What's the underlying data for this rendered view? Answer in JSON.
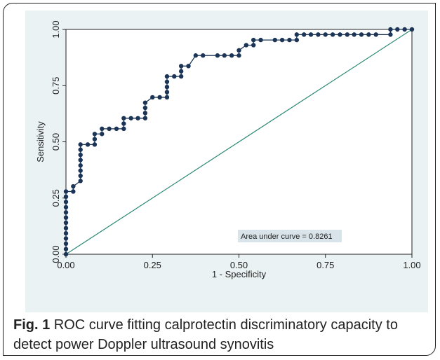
{
  "chart_data": {
    "type": "line",
    "xlabel": "1 - Specificity",
    "ylabel": "Sensitivity",
    "xlim": [
      0,
      1
    ],
    "ylim": [
      0,
      1
    ],
    "x_ticks": [
      "0.00",
      "0.25",
      "0.50",
      "0.75",
      "1.00"
    ],
    "y_ticks": [
      "0.00",
      "0.25",
      "0.50",
      "0.75",
      "1.00"
    ],
    "annotation": "Area under curve = 0.8261",
    "grid": false,
    "series": [
      {
        "points": [
          [
            0.0,
            0.0
          ],
          [
            0.0,
            0.023
          ],
          [
            0.0,
            0.047
          ],
          [
            0.0,
            0.07
          ],
          [
            0.0,
            0.093
          ],
          [
            0.0,
            0.116
          ],
          [
            0.0,
            0.14
          ],
          [
            0.0,
            0.163
          ],
          [
            0.0,
            0.186
          ],
          [
            0.0,
            0.209
          ],
          [
            0.0,
            0.233
          ],
          [
            0.0,
            0.256
          ],
          [
            0.0,
            0.279
          ],
          [
            0.021,
            0.279
          ],
          [
            0.021,
            0.302
          ],
          [
            0.042,
            0.326
          ],
          [
            0.042,
            0.349
          ],
          [
            0.042,
            0.372
          ],
          [
            0.042,
            0.395
          ],
          [
            0.042,
            0.419
          ],
          [
            0.042,
            0.442
          ],
          [
            0.042,
            0.465
          ],
          [
            0.042,
            0.488
          ],
          [
            0.063,
            0.488
          ],
          [
            0.083,
            0.488
          ],
          [
            0.083,
            0.512
          ],
          [
            0.083,
            0.535
          ],
          [
            0.104,
            0.535
          ],
          [
            0.104,
            0.558
          ],
          [
            0.125,
            0.558
          ],
          [
            0.146,
            0.558
          ],
          [
            0.167,
            0.558
          ],
          [
            0.167,
            0.581
          ],
          [
            0.167,
            0.605
          ],
          [
            0.188,
            0.605
          ],
          [
            0.208,
            0.605
          ],
          [
            0.229,
            0.605
          ],
          [
            0.229,
            0.628
          ],
          [
            0.229,
            0.651
          ],
          [
            0.229,
            0.674
          ],
          [
            0.25,
            0.698
          ],
          [
            0.271,
            0.698
          ],
          [
            0.292,
            0.698
          ],
          [
            0.292,
            0.721
          ],
          [
            0.292,
            0.744
          ],
          [
            0.292,
            0.767
          ],
          [
            0.292,
            0.791
          ],
          [
            0.313,
            0.791
          ],
          [
            0.333,
            0.791
          ],
          [
            0.333,
            0.814
          ],
          [
            0.333,
            0.837
          ],
          [
            0.354,
            0.837
          ],
          [
            0.375,
            0.884
          ],
          [
            0.396,
            0.884
          ],
          [
            0.438,
            0.884
          ],
          [
            0.458,
            0.884
          ],
          [
            0.479,
            0.884
          ],
          [
            0.5,
            0.884
          ],
          [
            0.5,
            0.907
          ],
          [
            0.521,
            0.93
          ],
          [
            0.542,
            0.93
          ],
          [
            0.542,
            0.953
          ],
          [
            0.563,
            0.953
          ],
          [
            0.604,
            0.953
          ],
          [
            0.625,
            0.953
          ],
          [
            0.646,
            0.953
          ],
          [
            0.667,
            0.953
          ],
          [
            0.667,
            0.977
          ],
          [
            0.688,
            0.977
          ],
          [
            0.708,
            0.977
          ],
          [
            0.729,
            0.977
          ],
          [
            0.75,
            0.977
          ],
          [
            0.771,
            0.977
          ],
          [
            0.792,
            0.977
          ],
          [
            0.813,
            0.977
          ],
          [
            0.833,
            0.977
          ],
          [
            0.854,
            0.977
          ],
          [
            0.875,
            0.977
          ],
          [
            0.896,
            0.977
          ],
          [
            0.938,
            0.977
          ],
          [
            0.938,
            1.0
          ],
          [
            0.958,
            1.0
          ],
          [
            0.979,
            1.0
          ],
          [
            1.0,
            1.0
          ]
        ]
      },
      {
        "points": [
          [
            0,
            0
          ],
          [
            1,
            1
          ]
        ]
      }
    ]
  },
  "caption": {
    "label": "Fig. 1",
    "text": " ROC curve fitting calprotectin discriminatory capacity to detect power Doppler ultrasound synovitis"
  },
  "colors": {
    "curve": "#1c3557",
    "reference": "#2d8a76",
    "annotation_bg": "#d9e4ea",
    "panel_bg": "#eaf2f3",
    "axes_bg": "#ffffff"
  }
}
